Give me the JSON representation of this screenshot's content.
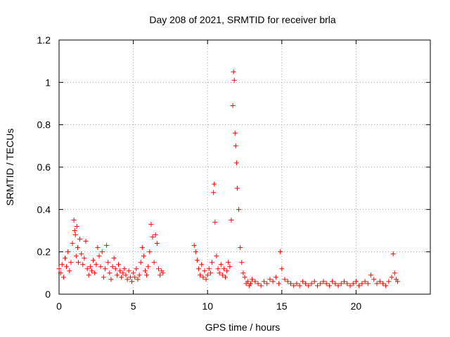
{
  "chart_data": {
    "type": "scatter",
    "title": "Day 208 of 2021, SRMTID for receiver brla",
    "xlabel": "GPS time / hours",
    "ylabel": "SRMTID / TECUs",
    "xlim": [
      0,
      25
    ],
    "ylim": [
      0,
      1.2
    ],
    "xticks": [
      0,
      5,
      10,
      15,
      20
    ],
    "xtick_labels": [
      "0",
      "5",
      "10",
      "15",
      "20"
    ],
    "yticks": [
      0,
      0.2,
      0.4,
      0.6,
      0.8,
      1,
      1.2
    ],
    "ytick_labels": [
      "0",
      "0.2",
      "0.4",
      "0.6",
      "0.8",
      "1",
      "1.2"
    ],
    "grid": true,
    "marker": "+",
    "color": "#ff0000",
    "series": [
      {
        "name": "SRMTID",
        "x": [
          0.0,
          0.1,
          0.2,
          0.3,
          0.4,
          0.5,
          0.6,
          0.7,
          0.8,
          0.9,
          1.0,
          1.05,
          1.1,
          1.15,
          1.2,
          1.25,
          1.3,
          1.4,
          1.5,
          1.6,
          1.7,
          1.8,
          1.9,
          2.0,
          2.1,
          2.2,
          2.3,
          2.4,
          2.5,
          2.6,
          2.7,
          2.8,
          2.9,
          3.0,
          3.1,
          3.2,
          3.3,
          3.4,
          3.5,
          3.6,
          3.7,
          3.8,
          3.9,
          4.0,
          4.1,
          4.2,
          4.3,
          4.4,
          4.5,
          4.6,
          4.7,
          4.8,
          4.9,
          5.0,
          5.1,
          5.2,
          5.3,
          5.4,
          5.5,
          5.6,
          5.7,
          5.8,
          5.9,
          6.0,
          6.1,
          6.2,
          6.3,
          6.4,
          6.5,
          6.6,
          6.7,
          6.8,
          6.9,
          7.0,
          9.1,
          9.2,
          9.3,
          9.4,
          9.5,
          9.6,
          9.7,
          9.8,
          9.9,
          10.0,
          10.1,
          10.2,
          10.3,
          10.4,
          10.45,
          10.5,
          10.6,
          10.7,
          10.8,
          10.9,
          11.0,
          11.1,
          11.2,
          11.3,
          11.4,
          11.5,
          11.6,
          11.7,
          11.75,
          11.8,
          11.85,
          11.9,
          11.95,
          12.0,
          12.1,
          12.2,
          12.3,
          12.4,
          12.5,
          12.6,
          12.7,
          12.8,
          12.9,
          13.0,
          13.2,
          13.4,
          13.6,
          13.8,
          14.0,
          14.2,
          14.4,
          14.6,
          14.8,
          14.9,
          15.0,
          15.2,
          15.4,
          15.6,
          15.8,
          16.0,
          16.2,
          16.4,
          16.6,
          16.8,
          17.0,
          17.2,
          17.4,
          17.6,
          17.8,
          18.0,
          18.2,
          18.4,
          18.6,
          18.8,
          19.0,
          19.2,
          19.4,
          19.6,
          19.8,
          20.0,
          20.2,
          20.4,
          20.6,
          20.8,
          21.0,
          21.2,
          21.4,
          21.6,
          21.8,
          22.0,
          22.2,
          22.4,
          22.5,
          22.6,
          22.7,
          22.8
        ],
        "y": [
          0.12,
          0.1,
          0.14,
          0.08,
          0.17,
          0.13,
          0.2,
          0.11,
          0.15,
          0.24,
          0.35,
          0.3,
          0.28,
          0.18,
          0.32,
          0.22,
          0.15,
          0.26,
          0.19,
          0.14,
          0.17,
          0.25,
          0.12,
          0.09,
          0.13,
          0.11,
          0.16,
          0.1,
          0.14,
          0.22,
          0.18,
          0.13,
          0.2,
          0.08,
          0.12,
          0.23,
          0.15,
          0.1,
          0.07,
          0.13,
          0.17,
          0.12,
          0.09,
          0.14,
          0.11,
          0.08,
          0.1,
          0.12,
          0.09,
          0.07,
          0.11,
          0.08,
          0.06,
          0.1,
          0.08,
          0.12,
          0.07,
          0.09,
          0.15,
          0.22,
          0.18,
          0.11,
          0.09,
          0.13,
          0.2,
          0.33,
          0.27,
          0.15,
          0.28,
          0.24,
          0.12,
          0.09,
          0.11,
          0.1,
          0.23,
          0.2,
          0.16,
          0.12,
          0.09,
          0.14,
          0.08,
          0.11,
          0.07,
          0.09,
          0.12,
          0.1,
          0.15,
          0.48,
          0.52,
          0.34,
          0.18,
          0.12,
          0.1,
          0.14,
          0.09,
          0.12,
          0.08,
          0.11,
          0.15,
          0.13,
          0.35,
          0.89,
          1.05,
          1.01,
          0.76,
          0.7,
          0.62,
          0.5,
          0.4,
          0.22,
          0.15,
          0.1,
          0.08,
          0.05,
          0.06,
          0.04,
          0.05,
          0.07,
          0.06,
          0.05,
          0.04,
          0.06,
          0.05,
          0.07,
          0.06,
          0.08,
          0.05,
          0.2,
          0.12,
          0.07,
          0.06,
          0.05,
          0.04,
          0.05,
          0.04,
          0.06,
          0.05,
          0.04,
          0.05,
          0.06,
          0.04,
          0.05,
          0.06,
          0.05,
          0.04,
          0.06,
          0.05,
          0.04,
          0.05,
          0.06,
          0.05,
          0.04,
          0.05,
          0.06,
          0.04,
          0.05,
          0.06,
          0.05,
          0.09,
          0.07,
          0.05,
          0.06,
          0.05,
          0.04,
          0.06,
          0.08,
          0.19,
          0.1,
          0.07,
          0.06
        ]
      }
    ]
  }
}
